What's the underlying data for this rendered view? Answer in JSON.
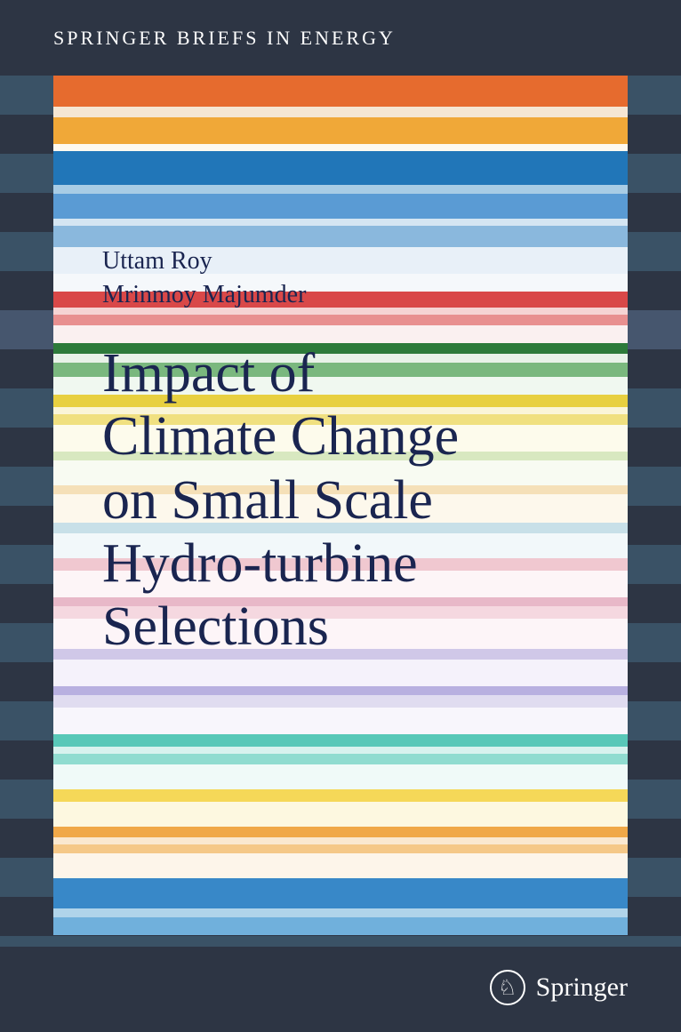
{
  "series": "SPRINGER BRIEFS IN ENERGY",
  "authors": [
    "Uttam Roy",
    "Mrinmoy Majumder"
  ],
  "title_lines": [
    "Impact of",
    "Climate Change",
    "on Small Scale",
    "Hydro-turbine",
    "Selections"
  ],
  "publisher": "Springer",
  "publisher_icon": "♘",
  "colors": {
    "background": "#2d3544",
    "text_header": "#ffffff",
    "text_body": "#1a2550",
    "text_publisher": "#ffffff"
  },
  "bg_stripes": [
    {
      "h": 44,
      "c": "#3a5266"
    },
    {
      "h": 44,
      "c": "#2d3544"
    },
    {
      "h": 44,
      "c": "#3a5266"
    },
    {
      "h": 44,
      "c": "#2d3544"
    },
    {
      "h": 44,
      "c": "#3a5266"
    },
    {
      "h": 44,
      "c": "#2d3544"
    },
    {
      "h": 44,
      "c": "#46566e"
    },
    {
      "h": 44,
      "c": "#2d3544"
    },
    {
      "h": 44,
      "c": "#3a5266"
    },
    {
      "h": 44,
      "c": "#2d3544"
    },
    {
      "h": 44,
      "c": "#3a5266"
    },
    {
      "h": 44,
      "c": "#2d3544"
    },
    {
      "h": 44,
      "c": "#3a5266"
    },
    {
      "h": 44,
      "c": "#2d3544"
    },
    {
      "h": 44,
      "c": "#3a5266"
    },
    {
      "h": 44,
      "c": "#2d3544"
    },
    {
      "h": 44,
      "c": "#3a5266"
    },
    {
      "h": 44,
      "c": "#2d3544"
    },
    {
      "h": 44,
      "c": "#3a5266"
    },
    {
      "h": 44,
      "c": "#2d3544"
    },
    {
      "h": 44,
      "c": "#3a5266"
    },
    {
      "h": 44,
      "c": "#2d3544"
    },
    {
      "h": 12,
      "c": "#3a5266"
    }
  ],
  "panel_stripes": [
    {
      "h": 35,
      "c": "#e66b2e"
    },
    {
      "h": 12,
      "c": "#f5e6d3"
    },
    {
      "h": 30,
      "c": "#f0a838"
    },
    {
      "h": 8,
      "c": "#fdf9f0"
    },
    {
      "h": 38,
      "c": "#2176b8"
    },
    {
      "h": 10,
      "c": "#a8cce5"
    },
    {
      "h": 28,
      "c": "#5a9bd4"
    },
    {
      "h": 8,
      "c": "#d4e5f2"
    },
    {
      "h": 24,
      "c": "#8ab8dd"
    },
    {
      "h": 30,
      "c": "#e8f0f8"
    },
    {
      "h": 20,
      "c": "#f5f8fb"
    },
    {
      "h": 18,
      "c": "#d94848"
    },
    {
      "h": 8,
      "c": "#f5d4d4"
    },
    {
      "h": 12,
      "c": "#e89090"
    },
    {
      "h": 20,
      "c": "#faf0f0"
    },
    {
      "h": 12,
      "c": "#2d7a3a"
    },
    {
      "h": 10,
      "c": "#e8f2e8"
    },
    {
      "h": 16,
      "c": "#7ab87e"
    },
    {
      "h": 20,
      "c": "#f0f8f0"
    },
    {
      "h": 14,
      "c": "#e8d040"
    },
    {
      "h": 8,
      "c": "#faf5d8"
    },
    {
      "h": 12,
      "c": "#f0e080"
    },
    {
      "h": 30,
      "c": "#fdfbec"
    },
    {
      "h": 10,
      "c": "#d8e8c0"
    },
    {
      "h": 28,
      "c": "#f8fbf2"
    },
    {
      "h": 10,
      "c": "#f5e0b8"
    },
    {
      "h": 32,
      "c": "#fdf8ec"
    },
    {
      "h": 12,
      "c": "#c8e0e8"
    },
    {
      "h": 28,
      "c": "#f2f8fa"
    },
    {
      "h": 14,
      "c": "#f0c8d0"
    },
    {
      "h": 30,
      "c": "#fdf5f7"
    },
    {
      "h": 10,
      "c": "#e8b8c8"
    },
    {
      "h": 14,
      "c": "#f5d8e0"
    },
    {
      "h": 34,
      "c": "#fdf5f8"
    },
    {
      "h": 12,
      "c": "#d0c8e8"
    },
    {
      "h": 30,
      "c": "#f5f2fb"
    },
    {
      "h": 10,
      "c": "#b8b0e0"
    },
    {
      "h": 14,
      "c": "#e0dcf0"
    },
    {
      "h": 30,
      "c": "#f8f6fc"
    },
    {
      "h": 14,
      "c": "#58c8b8"
    },
    {
      "h": 8,
      "c": "#d8f2ee"
    },
    {
      "h": 12,
      "c": "#90dcd0"
    },
    {
      "h": 28,
      "c": "#f0faf8"
    },
    {
      "h": 14,
      "c": "#f5d858"
    },
    {
      "h": 28,
      "c": "#fdf8e0"
    },
    {
      "h": 12,
      "c": "#f0a848"
    },
    {
      "h": 8,
      "c": "#fae8d0"
    },
    {
      "h": 10,
      "c": "#f5c888"
    },
    {
      "h": 28,
      "c": "#fdf5ea"
    },
    {
      "h": 34,
      "c": "#3888c8"
    },
    {
      "h": 10,
      "c": "#b0d4ea"
    },
    {
      "h": 20,
      "c": "#70b0dc"
    }
  ]
}
